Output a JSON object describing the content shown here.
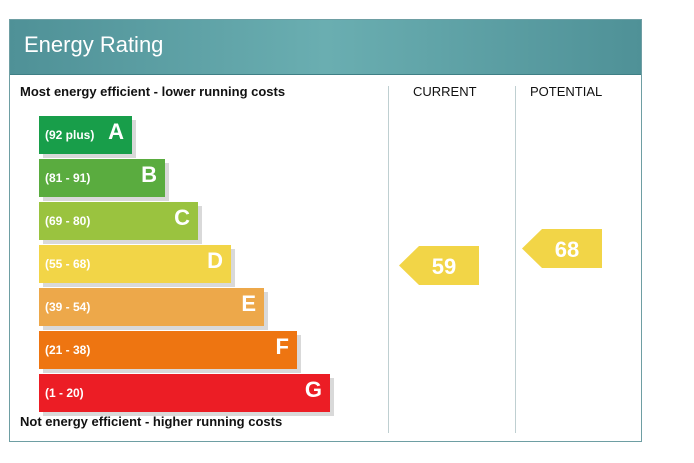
{
  "title": "Energy Rating",
  "labels": {
    "most": "Most energy efficient - lower running costs",
    "least": "Not energy efficient - higher running costs",
    "current": "CURRENT",
    "potential": "POTENTIAL"
  },
  "chart_data": {
    "type": "bar",
    "bands": [
      {
        "letter": "A",
        "range": "(92 plus)",
        "color": "#189e4a"
      },
      {
        "letter": "B",
        "range": "(81 - 91)",
        "color": "#5aac3f"
      },
      {
        "letter": "C",
        "range": "(69 - 80)",
        "color": "#9ac33f"
      },
      {
        "letter": "D",
        "range": "(55 - 68)",
        "color": "#f2d547"
      },
      {
        "letter": "E",
        "range": "(39 - 54)",
        "color": "#eda84a"
      },
      {
        "letter": "F",
        "range": "(21 - 38)",
        "color": "#ee7511"
      },
      {
        "letter": "G",
        "range": "(1 - 20)",
        "color": "#ec1d25"
      }
    ],
    "current": {
      "value": 59,
      "band": "D",
      "color": "#f2d547"
    },
    "potential": {
      "value": 68,
      "band": "D",
      "color": "#f2d547"
    }
  }
}
